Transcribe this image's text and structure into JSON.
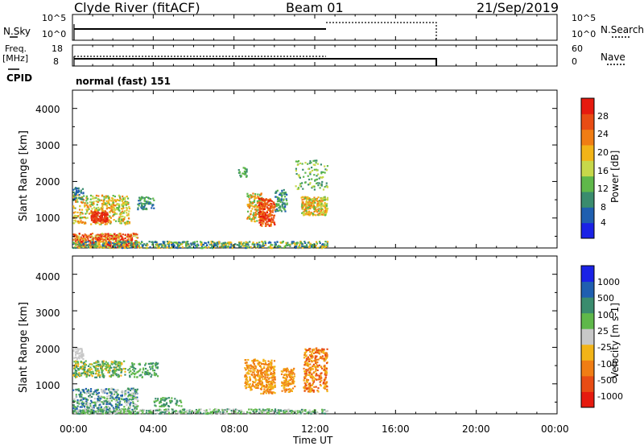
{
  "header": {
    "station": "Clyde River (fitACF)",
    "beam": "Beam 01",
    "date": "21/Sep/2019"
  },
  "sky_panel": {
    "left_label": "N.Sky",
    "left_ticks": [
      "10^5",
      "10^0"
    ],
    "right_ticks": [
      "10^5",
      "10^0"
    ],
    "right_label": "N.Search"
  },
  "freq_panel": {
    "left_label_1": "Freq.",
    "left_label_2": "[MHz]",
    "left_ticks": [
      "18",
      "8"
    ],
    "right_ticks": [
      "60",
      "0"
    ],
    "right_label": "Nave"
  },
  "cpid": {
    "label": "CPID",
    "value": "normal (fast) 151"
  },
  "chart_data": [
    {
      "type": "heatmap",
      "title": "",
      "ylabel": "Slant Range [km]",
      "ylim": [
        180,
        4500
      ],
      "yticks": [
        "1000",
        "2000",
        "3000",
        "4000"
      ],
      "colorbar_label": "Power [dB]",
      "colorbar_ticks": [
        "4",
        "8",
        "12",
        "16",
        "20",
        "24",
        "28"
      ],
      "colorbar_colors": [
        "#1a22e6",
        "#1f5fb0",
        "#3a8c6e",
        "#5fb84a",
        "#c7d84a",
        "#f2b418",
        "#f07d14",
        "#e84c14",
        "#e61a0f"
      ],
      "data_extent_hours": [
        0,
        12.6
      ]
    },
    {
      "type": "heatmap",
      "title": "",
      "ylabel": "Slant Range [km]",
      "ylim": [
        180,
        4500
      ],
      "yticks": [
        "1000",
        "2000",
        "3000",
        "4000"
      ],
      "colorbar_label": "Velocity [m s-1]",
      "colorbar_ticks": [
        "1000",
        "500",
        "100",
        "25",
        "-25",
        "-100",
        "-500",
        "-1000"
      ],
      "colorbar_colors": [
        "#1a22e6",
        "#1f5fb0",
        "#3a8c6e",
        "#5fb84a",
        "#c8c8c8",
        "#f2b418",
        "#f07d14",
        "#e84c14",
        "#e61a0f"
      ],
      "data_extent_hours": [
        0,
        12.6
      ]
    }
  ],
  "x_axis": {
    "label": "Time UT",
    "ticks": [
      "00:00",
      "04:00",
      "08:00",
      "12:00",
      "16:00",
      "20:00",
      "00:00"
    ]
  }
}
